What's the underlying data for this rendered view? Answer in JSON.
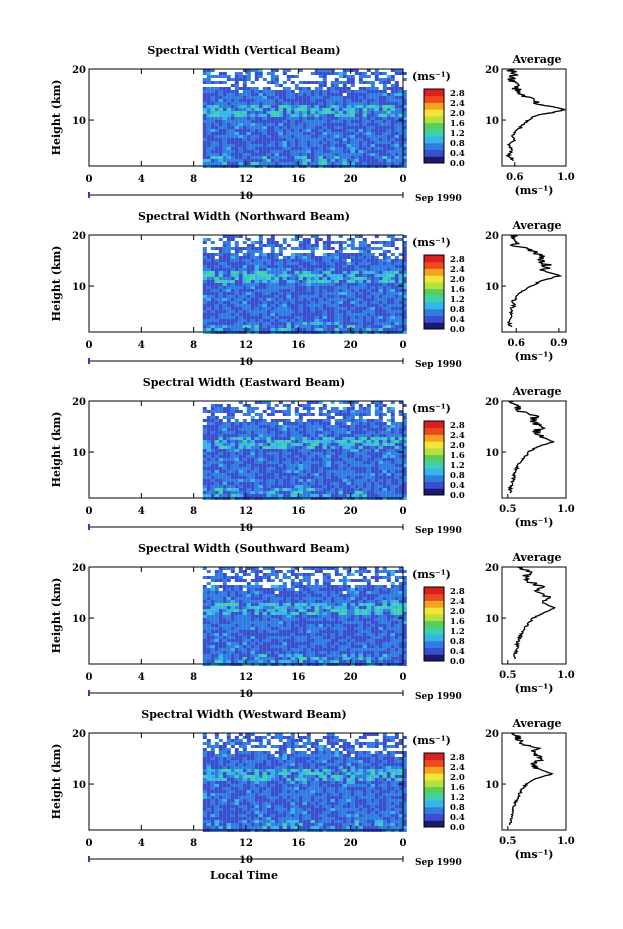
{
  "figure": {
    "xlabel_bottom": "Local Time",
    "date_label": "Sep 1990",
    "day_label": "10",
    "colorbar_unit": "(ms⁻¹)",
    "colorbar_ticks": [
      "0.0",
      "0.4",
      "0.8",
      "1.2",
      "1.6",
      "2.0",
      "2.4",
      "2.8"
    ],
    "colorbar_colors": [
      "#1a1a6e",
      "#3a4fd0",
      "#2f7de0",
      "#35b5e8",
      "#3fd0b0",
      "#58cf5a",
      "#b8e03a",
      "#f3e43a",
      "#f5a21f",
      "#ee4a1e",
      "#d8201e"
    ]
  },
  "chart_data": [
    {
      "type": "heatmap",
      "title": "Spectral Width (Vertical Beam)",
      "ylabel": "Height (km)",
      "x_ticks": [
        "0",
        "4",
        "8",
        "12",
        "16",
        "20",
        "0"
      ],
      "x_range": [
        0,
        24
      ],
      "y_ticks": [
        "10",
        "20"
      ],
      "y_range": [
        1,
        20
      ],
      "data_start_hour": 8.7,
      "value_unit": "ms⁻¹",
      "average": {
        "title": "Average",
        "xlabel": "(ms⁻¹)",
        "x_ticks": [
          "0.6",
          "1.0"
        ],
        "x_range": [
          0.5,
          1.0
        ],
        "y_ticks": [
          "10",
          "20"
        ],
        "profile": [
          [
            0.6,
            2
          ],
          [
            0.55,
            3
          ],
          [
            0.58,
            4
          ],
          [
            0.55,
            5
          ],
          [
            0.6,
            6
          ],
          [
            0.58,
            7
          ],
          [
            0.62,
            8
          ],
          [
            0.66,
            9
          ],
          [
            0.7,
            10
          ],
          [
            0.78,
            11
          ],
          [
            0.9,
            11.5
          ],
          [
            0.99,
            12
          ],
          [
            0.92,
            12.5
          ],
          [
            0.8,
            13
          ],
          [
            0.72,
            14
          ],
          [
            0.66,
            15
          ],
          [
            0.62,
            16
          ],
          [
            0.6,
            17
          ],
          [
            0.57,
            18
          ],
          [
            0.6,
            19
          ],
          [
            0.56,
            20
          ]
        ]
      }
    },
    {
      "type": "heatmap",
      "title": "Spectral Width (Northward Beam)",
      "ylabel": "Height (km)",
      "x_ticks": [
        "0",
        "4",
        "8",
        "12",
        "16",
        "20",
        "0"
      ],
      "x_range": [
        0,
        24
      ],
      "y_ticks": [
        "10",
        "20"
      ],
      "y_range": [
        1,
        20
      ],
      "data_start_hour": 8.7,
      "value_unit": "ms⁻¹",
      "average": {
        "title": "Average",
        "xlabel": "(ms⁻¹)",
        "x_ticks": [
          "0.6",
          "0.9"
        ],
        "x_range": [
          0.5,
          0.95
        ],
        "y_ticks": [
          "10",
          "20"
        ],
        "profile": [
          [
            0.56,
            2
          ],
          [
            0.55,
            3
          ],
          [
            0.57,
            4
          ],
          [
            0.56,
            5
          ],
          [
            0.58,
            6
          ],
          [
            0.58,
            7
          ],
          [
            0.6,
            8
          ],
          [
            0.64,
            9
          ],
          [
            0.7,
            10
          ],
          [
            0.78,
            11
          ],
          [
            0.9,
            12
          ],
          [
            0.8,
            13
          ],
          [
            0.82,
            14
          ],
          [
            0.76,
            15
          ],
          [
            0.8,
            16
          ],
          [
            0.68,
            17
          ],
          [
            0.6,
            18
          ],
          [
            0.62,
            19
          ],
          [
            0.56,
            20
          ]
        ]
      }
    },
    {
      "type": "heatmap",
      "title": "Spectral Width (Eastward Beam)",
      "ylabel": "Height (km)",
      "x_ticks": [
        "0",
        "4",
        "8",
        "12",
        "16",
        "20",
        "0"
      ],
      "x_range": [
        0,
        24
      ],
      "y_ticks": [
        "10",
        "20"
      ],
      "y_range": [
        1,
        20
      ],
      "data_start_hour": 8.7,
      "value_unit": "ms⁻¹",
      "average": {
        "title": "Average",
        "xlabel": "(ms⁻¹)",
        "x_ticks": [
          "0.5",
          "1.0"
        ],
        "x_range": [
          0.45,
          1.0
        ],
        "y_ticks": [
          "10",
          "20"
        ],
        "profile": [
          [
            0.52,
            2
          ],
          [
            0.52,
            3
          ],
          [
            0.54,
            4
          ],
          [
            0.55,
            5
          ],
          [
            0.56,
            6
          ],
          [
            0.58,
            7
          ],
          [
            0.6,
            8
          ],
          [
            0.64,
            9
          ],
          [
            0.68,
            10
          ],
          [
            0.75,
            11
          ],
          [
            0.9,
            12
          ],
          [
            0.78,
            13
          ],
          [
            0.74,
            14
          ],
          [
            0.8,
            15
          ],
          [
            0.7,
            16
          ],
          [
            0.74,
            17
          ],
          [
            0.62,
            18
          ],
          [
            0.58,
            19
          ],
          [
            0.55,
            20
          ]
        ]
      }
    },
    {
      "type": "heatmap",
      "title": "Spectral Width (Southward Beam)",
      "ylabel": "Height (km)",
      "x_ticks": [
        "0",
        "4",
        "8",
        "12",
        "16",
        "20",
        "0"
      ],
      "x_range": [
        0,
        24
      ],
      "y_ticks": [
        "10",
        "20"
      ],
      "y_range": [
        1,
        20
      ],
      "data_start_hour": 8.7,
      "value_unit": "ms⁻¹",
      "average": {
        "title": "Average",
        "xlabel": "(ms⁻¹)",
        "x_ticks": [
          "0.5",
          "1.0"
        ],
        "x_range": [
          0.45,
          1.0
        ],
        "y_ticks": [
          "10",
          "20"
        ],
        "profile": [
          [
            0.55,
            2
          ],
          [
            0.56,
            3
          ],
          [
            0.58,
            4
          ],
          [
            0.58,
            5
          ],
          [
            0.6,
            6
          ],
          [
            0.62,
            7
          ],
          [
            0.64,
            8
          ],
          [
            0.68,
            9
          ],
          [
            0.72,
            10
          ],
          [
            0.8,
            11
          ],
          [
            0.9,
            12
          ],
          [
            0.8,
            13
          ],
          [
            0.86,
            14
          ],
          [
            0.74,
            15
          ],
          [
            0.8,
            16
          ],
          [
            0.7,
            17
          ],
          [
            0.64,
            18
          ],
          [
            0.7,
            19
          ],
          [
            0.58,
            20
          ]
        ]
      }
    },
    {
      "type": "heatmap",
      "title": "Spectral Width (Westward Beam)",
      "ylabel": "Height (km)",
      "x_ticks": [
        "0",
        "4",
        "8",
        "12",
        "16",
        "20",
        "0"
      ],
      "x_range": [
        0,
        24
      ],
      "y_ticks": [
        "10",
        "20"
      ],
      "y_range": [
        1,
        20
      ],
      "data_start_hour": 8.7,
      "value_unit": "ms⁻¹",
      "average": {
        "title": "Average",
        "xlabel": "(ms⁻¹)",
        "x_ticks": [
          "0.5",
          "1.0"
        ],
        "x_range": [
          0.45,
          1.0
        ],
        "y_ticks": [
          "10",
          "20"
        ],
        "profile": [
          [
            0.52,
            2
          ],
          [
            0.52,
            3
          ],
          [
            0.54,
            4
          ],
          [
            0.55,
            5
          ],
          [
            0.56,
            6
          ],
          [
            0.58,
            7
          ],
          [
            0.6,
            8
          ],
          [
            0.62,
            9
          ],
          [
            0.66,
            10
          ],
          [
            0.74,
            11
          ],
          [
            0.88,
            12
          ],
          [
            0.76,
            13
          ],
          [
            0.72,
            14
          ],
          [
            0.82,
            15
          ],
          [
            0.7,
            16
          ],
          [
            0.76,
            17
          ],
          [
            0.62,
            18
          ],
          [
            0.58,
            19
          ],
          [
            0.56,
            20
          ]
        ]
      }
    }
  ]
}
